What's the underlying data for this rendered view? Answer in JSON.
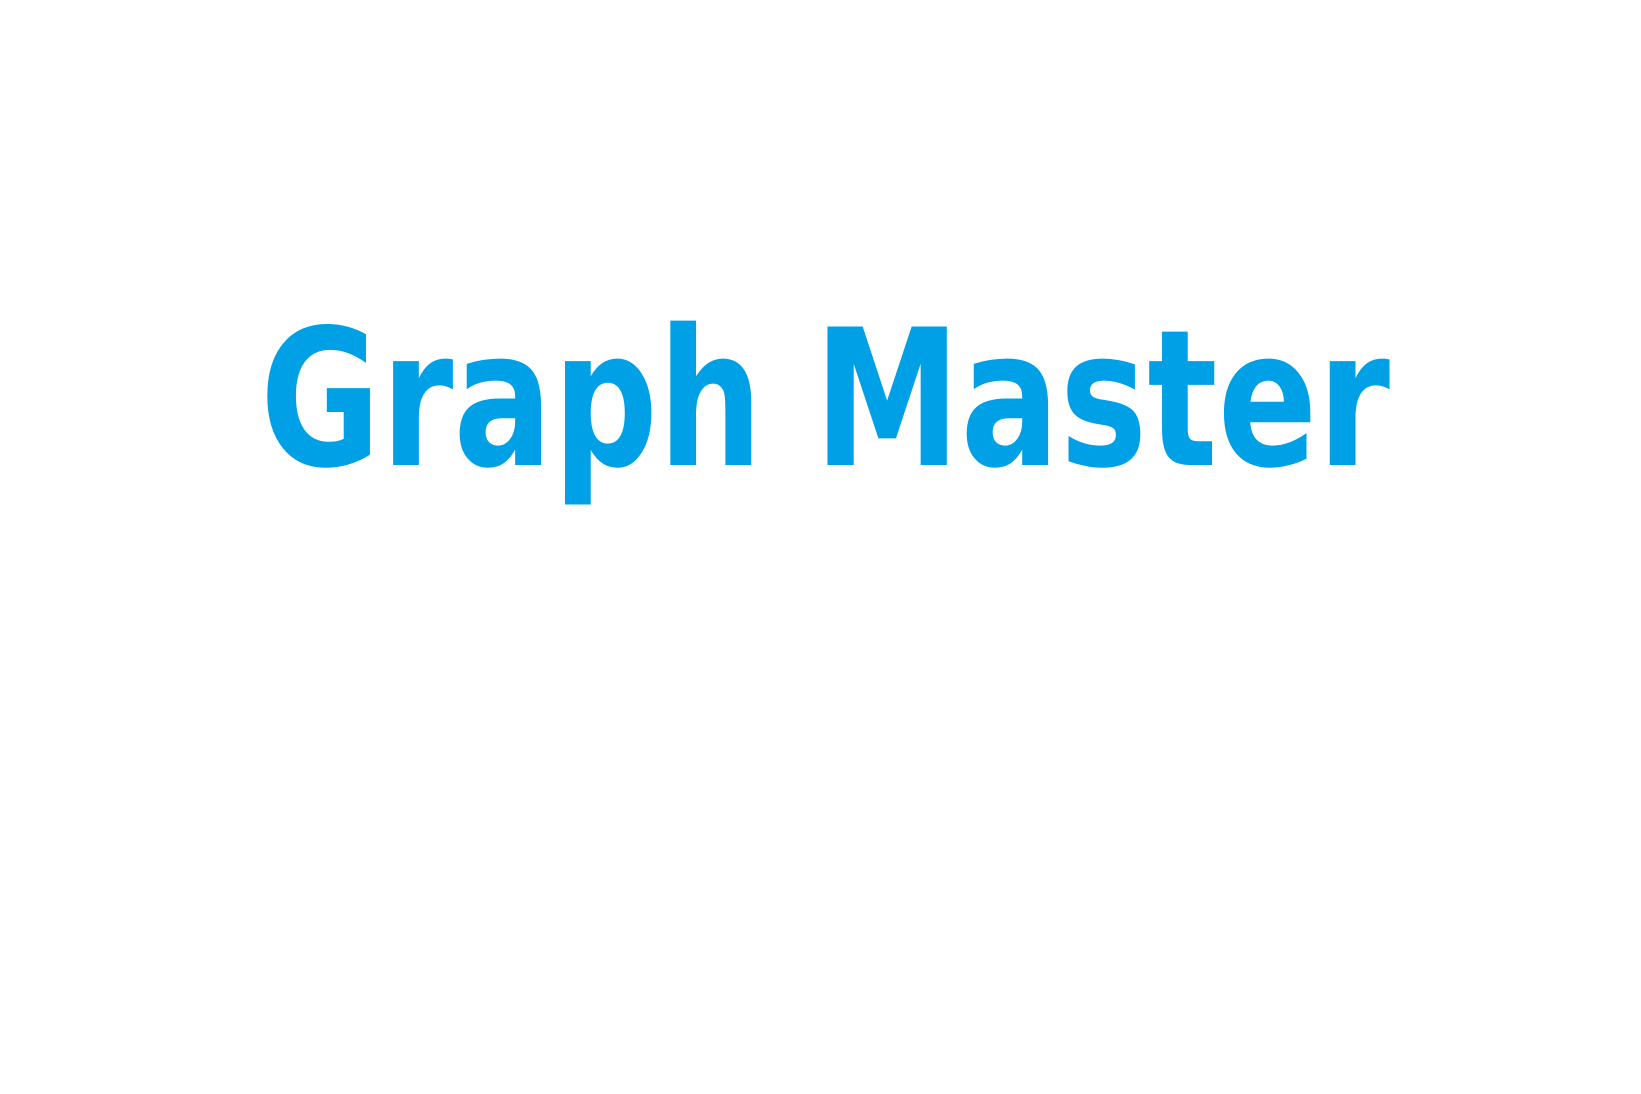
{
  "splash": {
    "logo_text": "Graph Master",
    "brand_color": "#00A0E6",
    "background_color": "#FFFFFF"
  }
}
